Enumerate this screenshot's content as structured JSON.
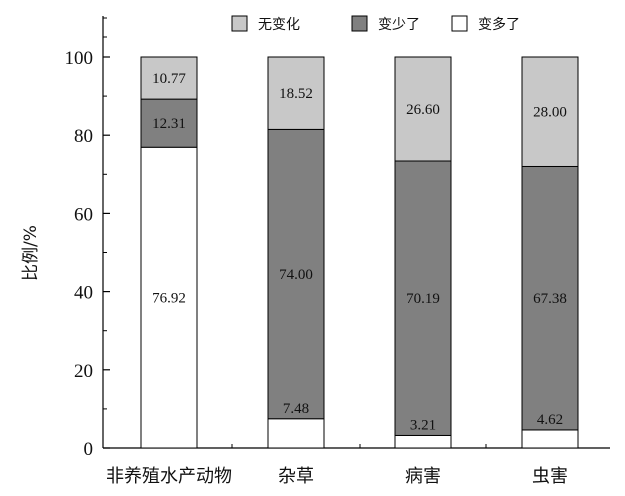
{
  "chart_data": {
    "type": "bar",
    "stacked": true,
    "categories": [
      "非养殖水产动物",
      "杂草",
      "病害",
      "虫害"
    ],
    "series": [
      {
        "name": "变多了",
        "values": [
          76.92,
          7.48,
          3.21,
          4.62
        ],
        "color": "#ffffff"
      },
      {
        "name": "变少了",
        "values": [
          12.31,
          74.0,
          70.19,
          67.38
        ],
        "color": "#808080"
      },
      {
        "name": "无变化",
        "values": [
          10.77,
          18.52,
          26.6,
          28.0
        ],
        "color": "#c8c8c8"
      }
    ],
    "data_labels": [
      [
        "76.92",
        "7.48",
        "3.21",
        "4.62"
      ],
      [
        "12.31",
        "74.00",
        "70.19",
        "67.38"
      ],
      [
        "10.77",
        "18.52",
        "26.60",
        "28.00"
      ]
    ],
    "legend_order": [
      "无变化",
      "变少了",
      "变多了"
    ],
    "legend_position": "top",
    "ylabel": "比例/%",
    "xlabel": "",
    "ylim": [
      0,
      100
    ],
    "yticks": [
      "0",
      "20",
      "40",
      "60",
      "80",
      "100"
    ],
    "grid": false
  }
}
